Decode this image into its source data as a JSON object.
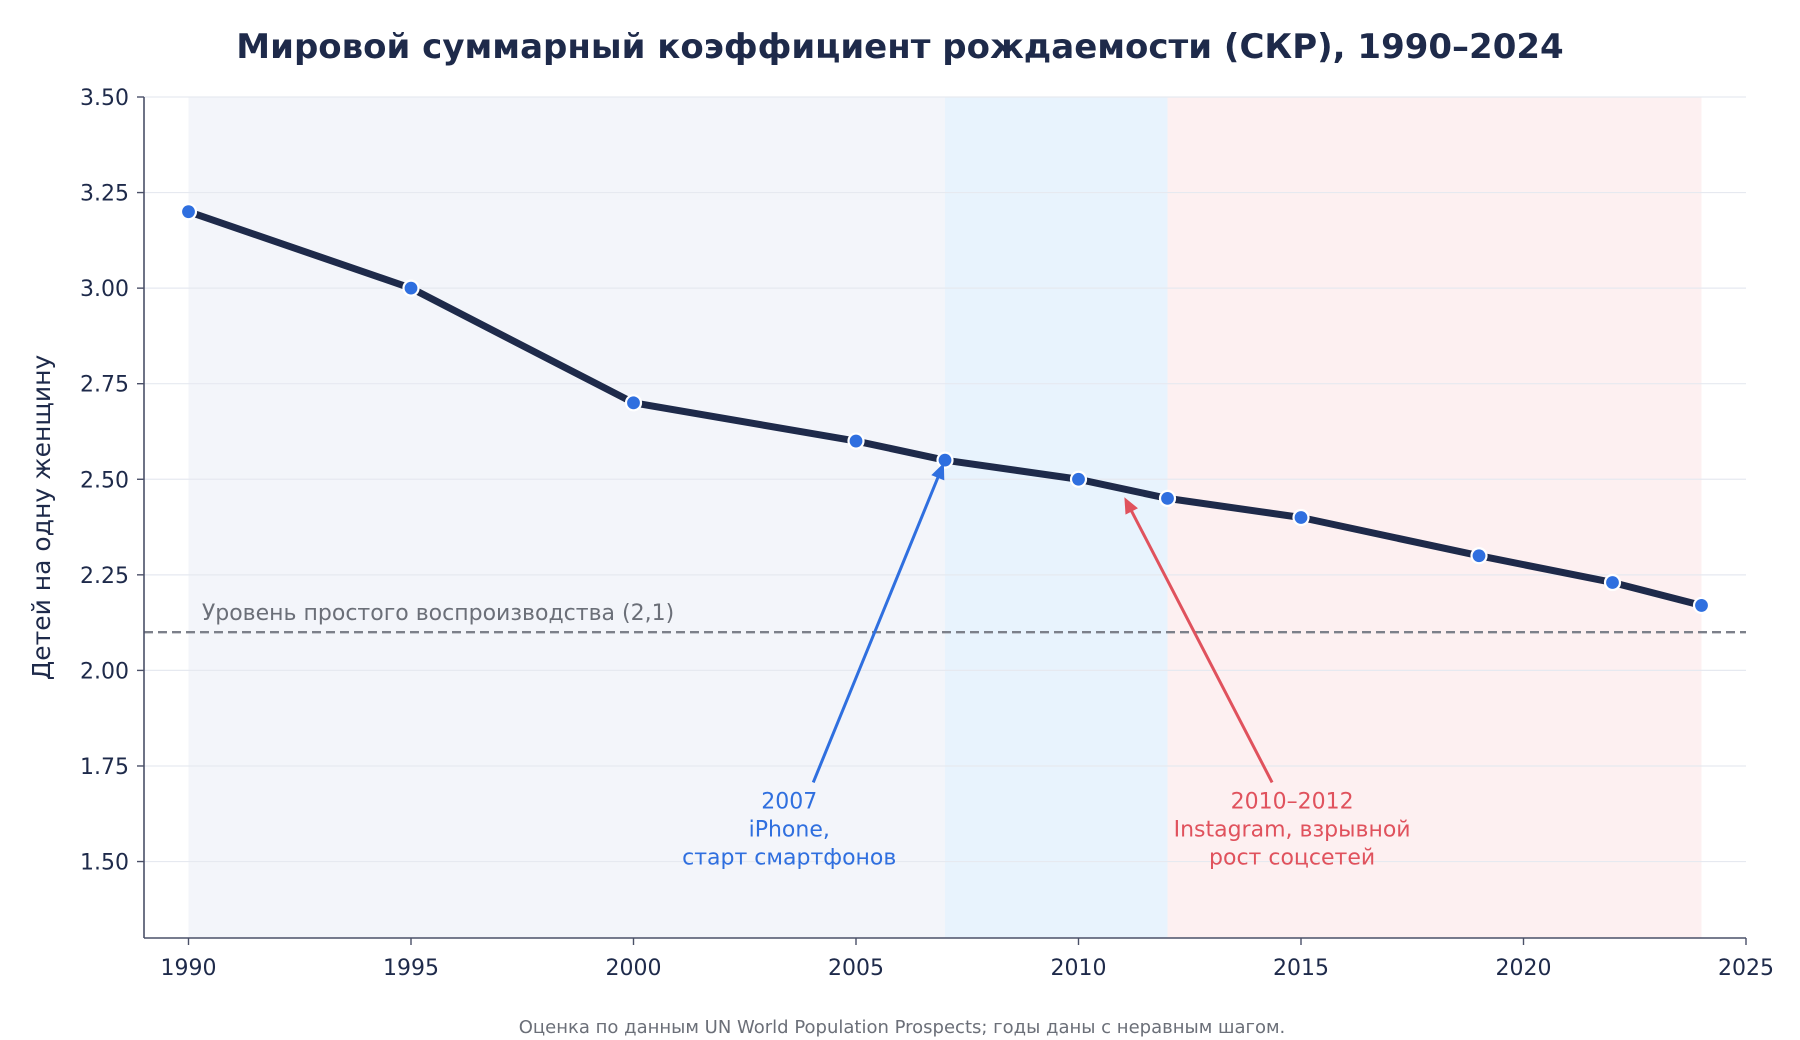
{
  "chart_data": {
    "type": "line",
    "title": "Мировой суммарный коэффициент рождаемости (СКР), 1990–2024",
    "xlabel": "",
    "ylabel": "Детей на одну женщину",
    "xlim": [
      1989,
      2025
    ],
    "ylim": [
      1.3,
      3.5
    ],
    "x_ticks": [
      "1990",
      "1995",
      "2000",
      "2005",
      "2010",
      "2015",
      "2020",
      "2025"
    ],
    "y_ticks": [
      "1.50",
      "1.75",
      "2.00",
      "2.25",
      "2.50",
      "2.75",
      "3.00",
      "3.25",
      "3.50"
    ],
    "grid": "horizontal",
    "series": [
      {
        "x": [
          1990,
          1995,
          2000,
          2005,
          2007,
          2010,
          2012,
          2015,
          2019,
          2022,
          2024
        ],
        "values": [
          3.2,
          3.0,
          2.7,
          2.6,
          2.55,
          2.5,
          2.45,
          2.4,
          2.3,
          2.23,
          2.17
        ],
        "line_color": "#1e2a4a",
        "marker_color": "#2f6fdf"
      }
    ],
    "reference_line": {
      "y": 2.1,
      "label": "Уровень простого воспроизводства (2,1)",
      "color": "#7c808a"
    },
    "shaded_regions": [
      {
        "from": 1990,
        "to": 2007,
        "color": "#f3f5fa"
      },
      {
        "from": 2007,
        "to": 2012,
        "color": "#e8f3fd"
      },
      {
        "from": 2012,
        "to": 2024,
        "color": "#fdf0f1"
      }
    ],
    "annotations": [
      {
        "lines": [
          "2007",
          "iPhone,",
          "старт смартфонов"
        ],
        "arrow_x": 2007,
        "arrow_y": 2.55,
        "text_x": 2003.5,
        "text_y": 1.66,
        "color": "#2f6fdf"
      },
      {
        "lines": [
          "2010–2012",
          "Instagram, взрывной",
          "рост соцсетей"
        ],
        "arrow_x": 2011,
        "arrow_y": 2.46,
        "text_x": 2014.8,
        "text_y": 1.66,
        "color": "#e0525d"
      }
    ],
    "footnote": "Оценка по данным UN World Population Prospects; годы даны с неравным шагом."
  }
}
